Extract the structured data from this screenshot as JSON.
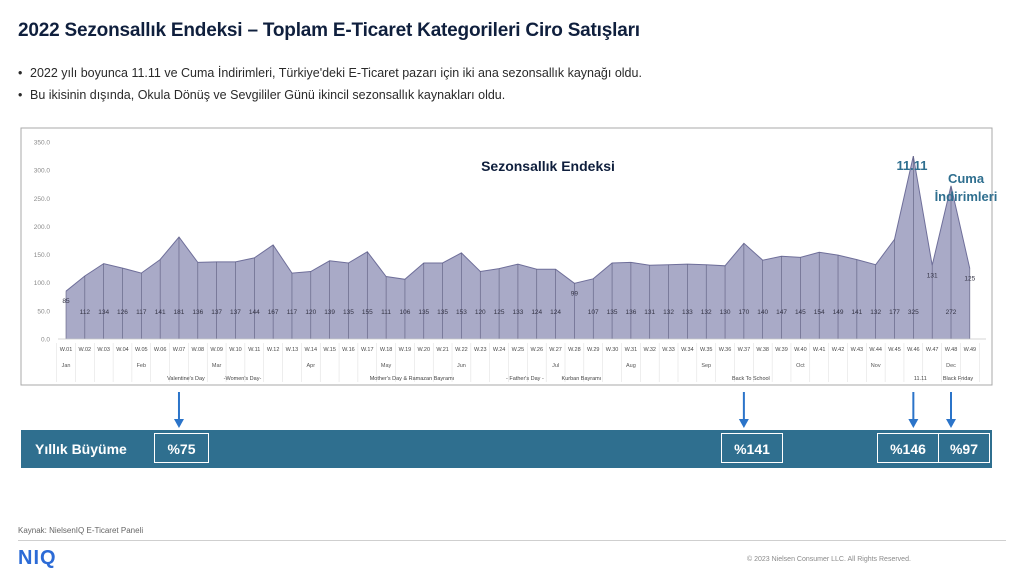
{
  "title": "2022 Sezonsallık Endeksi – Toplam E-Ticaret Kategorileri Ciro Satışları",
  "bullets": [
    "2022 yılı boyunca 11.11 ve Cuma İndirimleri, Türkiye'deki E-Ticaret pazarı için iki ana sezonsallık kaynağı oldu.",
    "Bu ikisinin dışında, Okula Dönüş ve Sevgililer Günü ikincil sezonsallık kaynakları oldu."
  ],
  "chart_data": {
    "type": "area",
    "title": "Sezonsallık Endeksi",
    "ylim": [
      0,
      350
    ],
    "y_ticks": [
      "0.0",
      "50.0",
      "100.0",
      "150.0",
      "200.0",
      "250.0",
      "300.0",
      "350.0"
    ],
    "categories": [
      "W.01",
      "W.02",
      "W.03",
      "W.04",
      "W.05",
      "W.06",
      "W.07",
      "W.08",
      "W.09",
      "W.10",
      "W.11",
      "W.12",
      "W.13",
      "W.14",
      "W.15",
      "W.16",
      "W.17",
      "W.18",
      "W.19",
      "W.20",
      "W.21",
      "W.22",
      "W.23",
      "W.24",
      "W.25",
      "W.26",
      "W.27",
      "W.28",
      "W.29",
      "W.30",
      "W.31",
      "W.32",
      "W.33",
      "W.34",
      "W.35",
      "W.36",
      "W.37",
      "W.38",
      "W.39",
      "W.40",
      "W.41",
      "W.42",
      "W.43",
      "W.44",
      "W.45",
      "W.46",
      "W.47",
      "W.48",
      "W.49"
    ],
    "values": [
      85,
      112,
      134,
      126,
      117,
      141,
      181,
      136,
      137,
      137,
      144,
      167,
      117,
      120,
      139,
      135,
      155,
      111,
      106,
      135,
      135,
      153,
      120,
      125,
      133,
      124,
      124,
      99,
      107,
      135,
      136,
      131,
      132,
      133,
      132,
      130,
      170,
      140,
      147,
      145,
      154,
      149,
      141,
      132,
      177,
      325,
      131,
      272,
      125
    ],
    "months": [
      {
        "label": "Jan",
        "week": 0
      },
      {
        "label": "Feb",
        "week": 4
      },
      {
        "label": "Mar",
        "week": 8
      },
      {
        "label": "Apr",
        "week": 13
      },
      {
        "label": "May",
        "week": 17
      },
      {
        "label": "Jun",
        "week": 21
      },
      {
        "label": "Jul",
        "week": 26
      },
      {
        "label": "Aug",
        "week": 30
      },
      {
        "label": "Sep",
        "week": 34
      },
      {
        "label": "Oct",
        "week": 39
      },
      {
        "label": "Nov",
        "week": 43
      },
      {
        "label": "Dec",
        "week": 47
      }
    ],
    "events": [
      {
        "label": "Valentine's Day",
        "week": 6
      },
      {
        "label": "-Women's Day-",
        "week": 9
      },
      {
        "label": "Mother's Day & Ramazan Bayramı",
        "week": 18
      },
      {
        "label": "- Father's Day -",
        "week": 24
      },
      {
        "label": "Kurban Bayramı",
        "week": 27
      },
      {
        "label": "Back To School",
        "week": 36
      },
      {
        "label": "11.11",
        "week": 45
      },
      {
        "label": "Black Friday",
        "week": 47
      }
    ],
    "peak_labels": [
      {
        "label": "11.11",
        "week": 45
      },
      {
        "label": "Cuma İndirimleri",
        "week": 47
      }
    ],
    "colors": {
      "area": "#a9aac7",
      "line": "#6f6f9a",
      "axis_text": "#8a8a8a",
      "frame": "#a9a9a9",
      "peak": "#2f6f8f",
      "arrow": "#2b74c9"
    }
  },
  "growth": {
    "label": "Yıllık Büyüme",
    "items": [
      {
        "value": "%75",
        "week": 6
      },
      {
        "value": "%141",
        "week": 36
      },
      {
        "value": "%146",
        "week": 45
      },
      {
        "value": "%97",
        "week": 47
      }
    ]
  },
  "source": "Kaynak: NielsenIQ E-Ticaret Paneli",
  "logo": "NIQ",
  "copyright": "© 2023 Nielsen Consumer LLC. All Rights Reserved."
}
